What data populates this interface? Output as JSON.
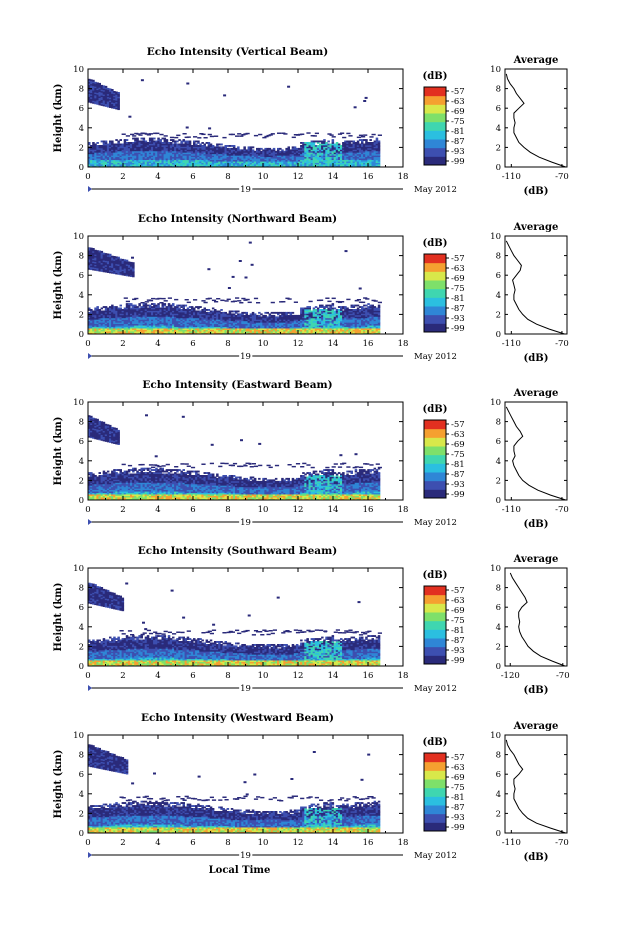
{
  "chart_data": [
    {
      "type": "heatmap",
      "title": "Echo Intensity (Vertical Beam)",
      "ylabel": "Height (km)",
      "xlim": [
        0,
        18
      ],
      "ylim": [
        0,
        10
      ],
      "xticks": [
        "0",
        "2",
        "4",
        "6",
        "8",
        "10",
        "12",
        "14",
        "16",
        "18"
      ],
      "yticks": [
        "0",
        "2",
        "4",
        "6",
        "8",
        "10"
      ],
      "date_label": "19",
      "month_label": "May 2012",
      "colorbar": {
        "unit": "(dB)",
        "ticks": [
          "-57",
          "-63",
          "-69",
          "-75",
          "-81",
          "-87",
          "-93",
          "-99"
        ]
      },
      "data_end_hour": 16.6,
      "features": {
        "low_layer_top_km": 3.0,
        "upper_patch_km": [
          6.0,
          9.0
        ],
        "upper_patch_hours": [
          0,
          1.8
        ],
        "strong_surface_echo": false
      },
      "average_profile": {
        "title": "Average",
        "xlabel": "(dB)",
        "xticks": [
          "-110",
          "-70"
        ],
        "xlim": [
          -115,
          -66
        ],
        "ylim": [
          0,
          10
        ],
        "yticks": [
          "0",
          "2",
          "4",
          "6",
          "8",
          "10"
        ],
        "x": [
          -67,
          -78,
          -88,
          -95,
          -100,
          -104,
          -106,
          -108,
          -108,
          -107,
          -108,
          -108,
          -104,
          -100,
          -103,
          -106,
          -108,
          -111,
          -113,
          -114
        ],
        "y": [
          0,
          0.5,
          1,
          1.5,
          2,
          2.5,
          3,
          3.5,
          4,
          4.5,
          5,
          5.5,
          6,
          6.5,
          7,
          7.5,
          8,
          8.5,
          9,
          9.5
        ]
      }
    },
    {
      "type": "heatmap",
      "title": "Echo Intensity (Northward Beam)",
      "ylabel": "Height (km)",
      "xlim": [
        0,
        18
      ],
      "ylim": [
        0,
        10
      ],
      "xticks": [
        "0",
        "2",
        "4",
        "6",
        "8",
        "10",
        "12",
        "14",
        "16",
        "18"
      ],
      "yticks": [
        "0",
        "2",
        "4",
        "6",
        "8",
        "10"
      ],
      "date_label": "19",
      "month_label": "May 2012",
      "colorbar": {
        "unit": "(dB)",
        "ticks": [
          "-57",
          "-63",
          "-69",
          "-75",
          "-81",
          "-87",
          "-93",
          "-99"
        ]
      },
      "data_end_hour": 16.6,
      "features": {
        "low_layer_top_km": 3.2,
        "upper_patch_km": [
          6.0,
          8.8
        ],
        "upper_patch_hours": [
          0,
          2.6
        ],
        "strong_surface_echo": true
      },
      "average_profile": {
        "title": "Average",
        "xlabel": "(dB)",
        "xticks": [
          "-110",
          "-70"
        ],
        "xlim": [
          -115,
          -66
        ],
        "ylim": [
          0,
          10
        ],
        "yticks": [
          "0",
          "2",
          "4",
          "6",
          "8",
          "10"
        ],
        "x": [
          -68,
          -80,
          -90,
          -97,
          -101,
          -104,
          -106,
          -108,
          -108,
          -107,
          -108,
          -109,
          -106,
          -103,
          -102,
          -105,
          -108,
          -110,
          -112,
          -114
        ],
        "y": [
          0,
          0.5,
          1,
          1.5,
          2,
          2.5,
          3,
          3.5,
          4,
          4.5,
          5,
          5.5,
          6,
          6.5,
          7,
          7.5,
          8,
          8.5,
          9,
          9.5
        ]
      }
    },
    {
      "type": "heatmap",
      "title": "Echo Intensity (Eastward Beam)",
      "ylabel": "Height (km)",
      "xlim": [
        0,
        18
      ],
      "ylim": [
        0,
        10
      ],
      "xticks": [
        "0",
        "2",
        "4",
        "6",
        "8",
        "10",
        "12",
        "14",
        "16",
        "18"
      ],
      "yticks": [
        "0",
        "2",
        "4",
        "6",
        "8",
        "10"
      ],
      "date_label": "19",
      "month_label": "May 2012",
      "colorbar": {
        "unit": "(dB)",
        "ticks": [
          "-57",
          "-63",
          "-69",
          "-75",
          "-81",
          "-87",
          "-93",
          "-99"
        ]
      },
      "data_end_hour": 16.6,
      "features": {
        "low_layer_top_km": 3.3,
        "upper_patch_km": [
          5.8,
          8.6
        ],
        "upper_patch_hours": [
          0,
          1.8
        ],
        "strong_surface_echo": true
      },
      "average_profile": {
        "title": "Average",
        "xlabel": "(dB)",
        "xticks": [
          "-110",
          "-70"
        ],
        "xlim": [
          -115,
          -66
        ],
        "ylim": [
          0,
          10
        ],
        "yticks": [
          "0",
          "2",
          "4",
          "6",
          "8",
          "10"
        ],
        "x": [
          -67,
          -79,
          -89,
          -96,
          -101,
          -104,
          -106,
          -108,
          -109,
          -107,
          -108,
          -108,
          -105,
          -101,
          -103,
          -106,
          -108,
          -110,
          -112,
          -114
        ],
        "y": [
          0,
          0.5,
          1,
          1.5,
          2,
          2.5,
          3,
          3.5,
          4,
          4.5,
          5,
          5.5,
          6,
          6.5,
          7,
          7.5,
          8,
          8.5,
          9,
          9.5
        ]
      }
    },
    {
      "type": "heatmap",
      "title": "Echo Intensity (Southward Beam)",
      "ylabel": "Height (km)",
      "xlim": [
        0,
        18
      ],
      "ylim": [
        0,
        10
      ],
      "xticks": [
        "0",
        "2",
        "4",
        "6",
        "8",
        "10",
        "12",
        "14",
        "16",
        "18"
      ],
      "yticks": [
        "0",
        "2",
        "4",
        "6",
        "8",
        "10"
      ],
      "date_label": "19",
      "month_label": "May 2012",
      "colorbar": {
        "unit": "(dB)",
        "ticks": [
          "-57",
          "-63",
          "-69",
          "-75",
          "-81",
          "-87",
          "-93",
          "-99"
        ]
      },
      "data_end_hour": 16.6,
      "features": {
        "low_layer_top_km": 3.2,
        "upper_patch_km": [
          5.8,
          8.5
        ],
        "upper_patch_hours": [
          0,
          2.0
        ],
        "strong_surface_echo": true
      },
      "average_profile": {
        "title": "Average",
        "xlabel": "(dB)",
        "xticks": [
          "-120",
          "-70"
        ],
        "xlim": [
          -125,
          -66
        ],
        "ylim": [
          0,
          10
        ],
        "yticks": [
          "0",
          "2",
          "4",
          "6",
          "8",
          "10"
        ],
        "x": [
          -68,
          -80,
          -91,
          -98,
          -103,
          -106,
          -109,
          -111,
          -112,
          -111,
          -112,
          -112,
          -109,
          -104,
          -106,
          -109,
          -112,
          -115,
          -118,
          -120
        ],
        "y": [
          0,
          0.5,
          1,
          1.5,
          2,
          2.5,
          3,
          3.5,
          4,
          4.5,
          5,
          5.5,
          6,
          6.5,
          7,
          7.5,
          8,
          8.5,
          9,
          9.5
        ]
      }
    },
    {
      "type": "heatmap",
      "title": "Echo Intensity (Westward Beam)",
      "ylabel": "Height (km)",
      "xlabel": "Local Time",
      "xlim": [
        0,
        18
      ],
      "ylim": [
        0,
        10
      ],
      "xticks": [
        "0",
        "2",
        "4",
        "6",
        "8",
        "10",
        "12",
        "14",
        "16",
        "18"
      ],
      "yticks": [
        "0",
        "2",
        "4",
        "6",
        "8",
        "10"
      ],
      "date_label": "19",
      "month_label": "May 2012",
      "colorbar": {
        "unit": "(dB)",
        "ticks": [
          "-57",
          "-63",
          "-69",
          "-75",
          "-81",
          "-87",
          "-93",
          "-99"
        ]
      },
      "data_end_hour": 16.6,
      "features": {
        "low_layer_top_km": 3.3,
        "upper_patch_km": [
          6.2,
          9.0
        ],
        "upper_patch_hours": [
          0,
          2.2
        ],
        "strong_surface_echo": true
      },
      "average_profile": {
        "title": "Average",
        "xlabel": "(dB)",
        "xticks": [
          "-110",
          "-70"
        ],
        "xlim": [
          -115,
          -66
        ],
        "ylim": [
          0,
          10
        ],
        "yticks": [
          "0",
          "2",
          "4",
          "6",
          "8",
          "10"
        ],
        "x": [
          -67,
          -79,
          -90,
          -97,
          -101,
          -104,
          -106,
          -108,
          -108,
          -107,
          -108,
          -108,
          -104,
          -101,
          -104,
          -106,
          -108,
          -111,
          -113,
          -114
        ],
        "y": [
          0,
          0.5,
          1,
          1.5,
          2,
          2.5,
          3,
          3.5,
          4,
          4.5,
          5,
          5.5,
          6,
          6.5,
          7,
          7.5,
          8,
          8.5,
          9,
          9.5
        ]
      }
    }
  ],
  "colors": {
    "colormap": [
      "#2a2a7a",
      "#3d4fb0",
      "#2f86d6",
      "#2bbfe0",
      "#3fd6b0",
      "#7ee06a",
      "#d8e84a",
      "#f5a030",
      "#e23020"
    ]
  }
}
